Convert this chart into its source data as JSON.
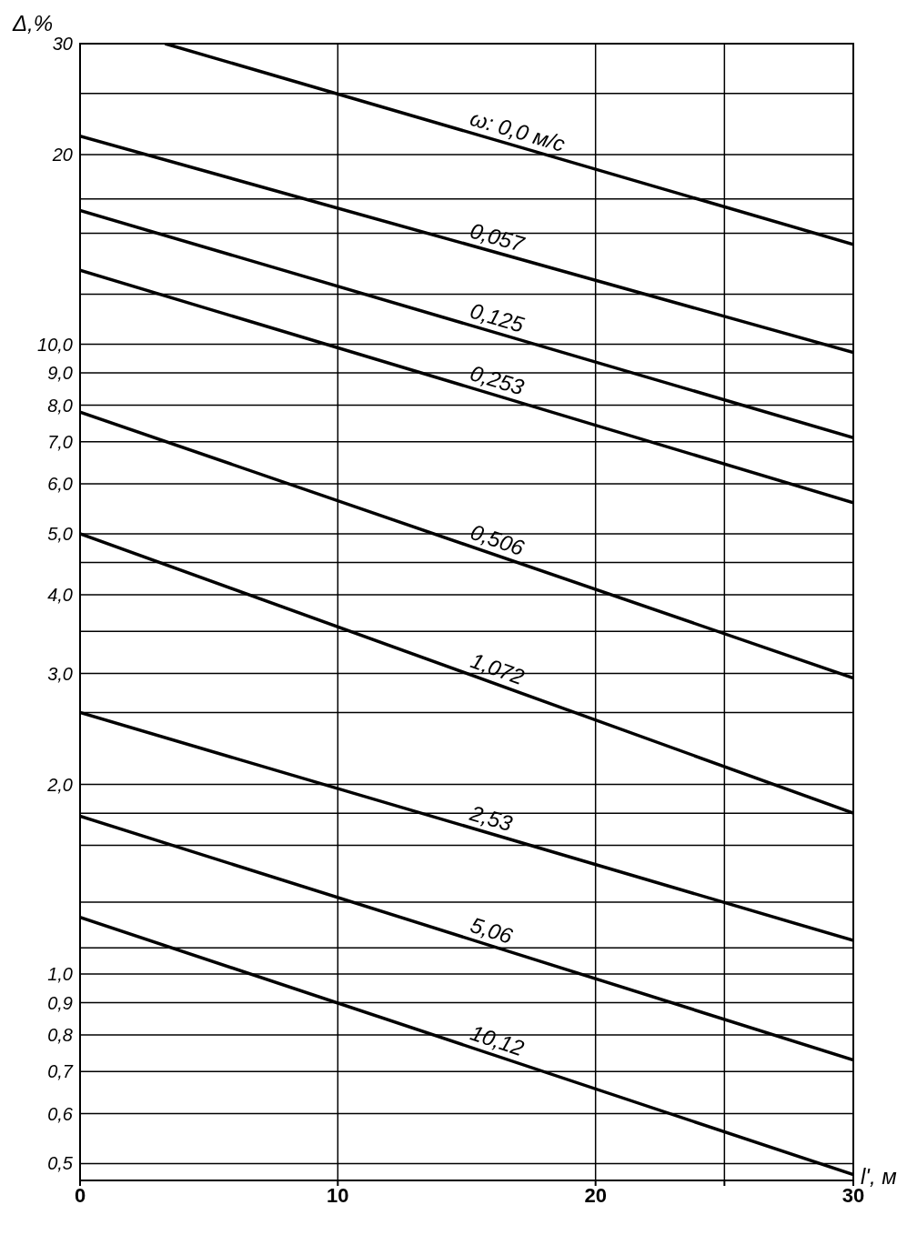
{
  "chart_data": {
    "type": "line",
    "ylabel": "Δ,%",
    "xlabel": "l', м",
    "log": "y",
    "grid": true,
    "legend": false,
    "marker": "none",
    "line_style": "solid",
    "xlim": [
      0,
      30
    ],
    "xticks": [
      0,
      10,
      20,
      {
        "value": 25,
        "label": null
      },
      30
    ],
    "ylim": [
      0.47,
      30
    ],
    "yticks": [
      {
        "value": 0.5,
        "label": "0,5"
      },
      {
        "value": 0.6,
        "label": "0,6"
      },
      {
        "value": 0.7,
        "label": "0,7"
      },
      {
        "value": 0.8,
        "label": "0,8"
      },
      {
        "value": 0.9,
        "label": "0,9"
      },
      {
        "value": 1,
        "label": "1,0"
      },
      {
        "value": 1.1,
        "label": null
      },
      {
        "value": 1.3,
        "label": null
      },
      {
        "value": 1.6,
        "label": null
      },
      {
        "value": 1.8,
        "label": null
      },
      {
        "value": 2,
        "label": "2,0"
      },
      {
        "value": 2.6,
        "label": null
      },
      {
        "value": 3,
        "label": "3,0"
      },
      {
        "value": 3.5,
        "label": null
      },
      {
        "value": 4,
        "label": "4,0"
      },
      {
        "value": 4.5,
        "label": null
      },
      {
        "value": 5,
        "label": "5,0"
      },
      {
        "value": 6,
        "label": "6,0"
      },
      {
        "value": 7,
        "label": "7,0"
      },
      {
        "value": 8,
        "label": "8,0"
      },
      {
        "value": 9,
        "label": "9,0"
      },
      {
        "value": 10,
        "label": "10,0"
      },
      {
        "value": 12,
        "label": null
      },
      {
        "value": 15,
        "label": null
      },
      {
        "value": 17,
        "label": null
      },
      {
        "value": 20,
        "label": "20"
      },
      {
        "value": 25,
        "label": null
      },
      30
    ],
    "series": [
      {
        "name": "ω: 0,0 м/с",
        "color": "#000000",
        "x": [
          3.3,
          30
        ],
        "values": [
          30,
          14.4
        ]
      },
      {
        "name": "0,057",
        "color": "#000000",
        "x": [
          0,
          30
        ],
        "values": [
          21.4,
          9.7
        ]
      },
      {
        "name": "0,125",
        "color": "#000000",
        "x": [
          0,
          30
        ],
        "values": [
          16.3,
          7.1
        ]
      },
      {
        "name": "0,253",
        "color": "#000000",
        "x": [
          0,
          30
        ],
        "values": [
          13.1,
          5.6
        ]
      },
      {
        "name": "0,506",
        "color": "#000000",
        "x": [
          0,
          30
        ],
        "values": [
          7.8,
          2.95
        ]
      },
      {
        "name": "1,072",
        "color": "#000000",
        "x": [
          0,
          30
        ],
        "values": [
          5,
          1.8
        ]
      },
      {
        "name": "2,53",
        "color": "#000000",
        "x": [
          0,
          30
        ],
        "values": [
          2.6,
          1.13
        ]
      },
      {
        "name": "5,06",
        "color": "#000000",
        "x": [
          0,
          30
        ],
        "values": [
          1.78,
          0.73
        ]
      },
      {
        "name": "10,12",
        "color": "#000000",
        "x": [
          0,
          30
        ],
        "values": [
          1.23,
          0.48
        ]
      }
    ]
  }
}
